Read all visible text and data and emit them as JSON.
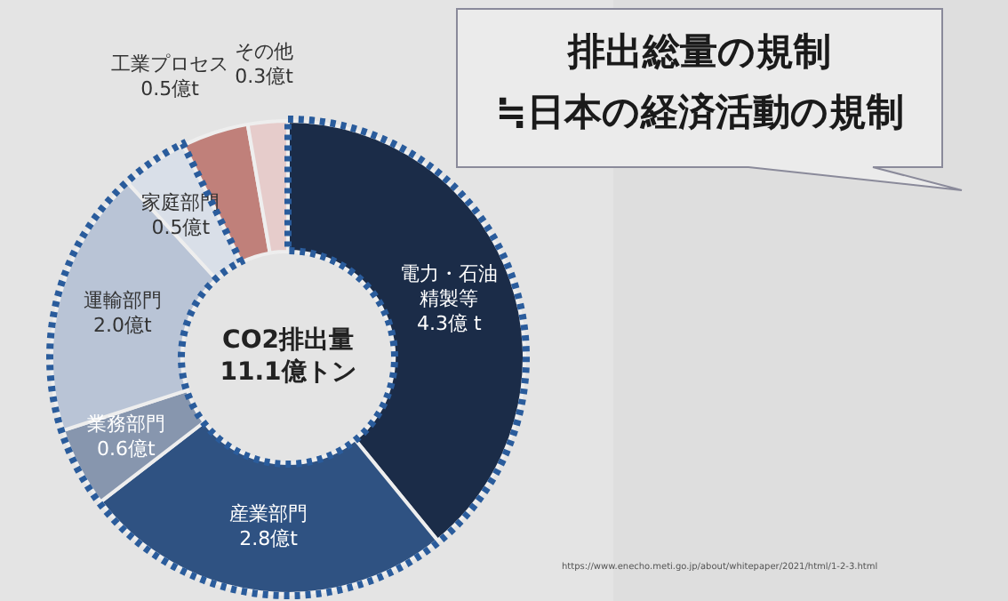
{
  "chart_data": {
    "type": "donut",
    "categories": [
      "電力・石油精製等",
      "産業部門",
      "業務部門",
      "運輸部門",
      "家庭部門",
      "工業プロセス",
      "その他"
    ],
    "values": [
      4.3,
      2.8,
      0.6,
      2.0,
      0.5,
      0.5,
      0.3
    ],
    "value_labels": [
      "4.3億 t",
      "2.8億t",
      "0.6億t",
      "2.0億t",
      "0.5億t",
      "0.5億t",
      "0.3億t"
    ],
    "colors": [
      "#1b2c48",
      "#2f5282",
      "#8796ae",
      "#b9c4d6",
      "#d9dfe8",
      "#c0807a",
      "#e6cccb"
    ],
    "legend": false,
    "annotations": [
      "CO2排出量\n11.1億トン",
      "排出総量の規制\n≒日本の経済活動の規制",
      "https://www.enecho.meti.go.jp/about/whitepaper/2021/html/1-2-3.html"
    ]
  }
}
